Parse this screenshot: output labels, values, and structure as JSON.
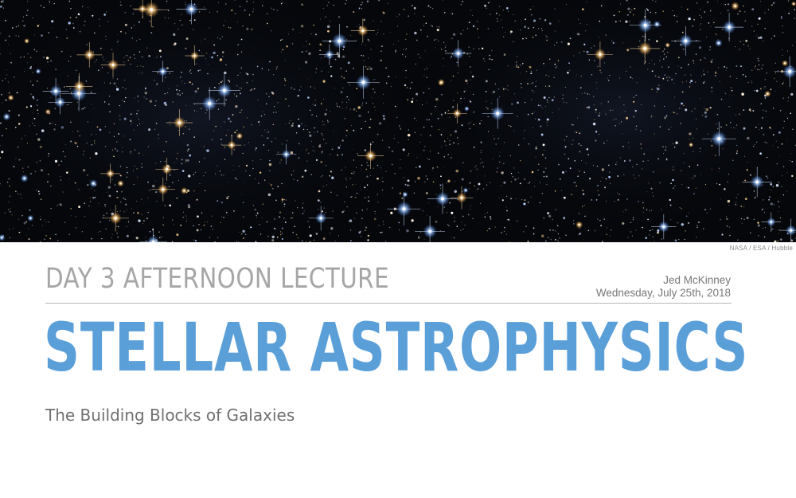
{
  "hero": {
    "image_icon": "star-field-image",
    "credit": "NASA / ESA / Hubble"
  },
  "header": {
    "day_title": "DAY 3 AFTERNOON LECTURE",
    "author": "Jed McKinney",
    "date": "Wednesday, July 25th, 2018"
  },
  "main": {
    "title": "STELLAR ASTROPHYSICS",
    "subtitle": "The Building Blocks of Galaxies"
  },
  "colors": {
    "title_blue": "#5b9fd9",
    "gray_heading": "#a6a6a6",
    "background": "#ffffff"
  }
}
